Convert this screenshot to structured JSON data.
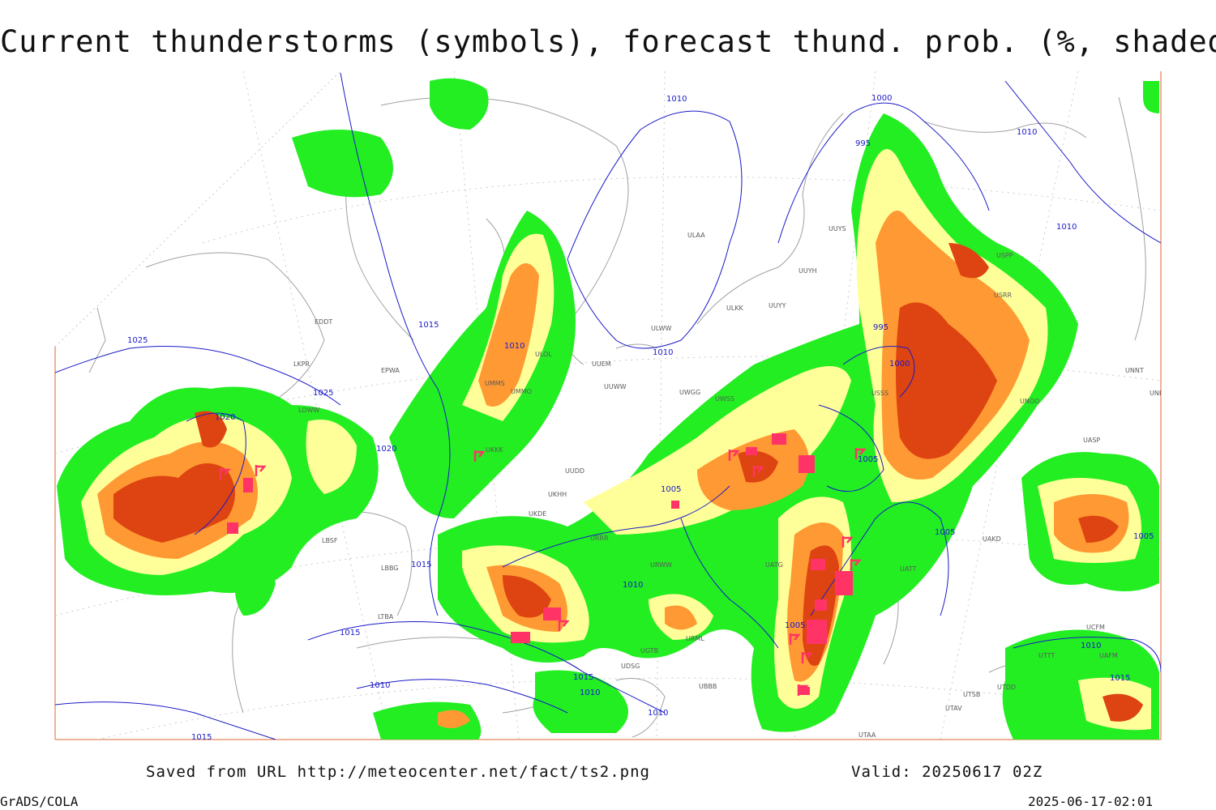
{
  "title": "Current thunderstorms (symbols), forecast thund. prob. (%, shaded)",
  "footer": {
    "source": "Saved from URL http://meteocenter.net/fact/ts2.png",
    "valid": "Valid: 20250617 02Z",
    "software": "GrADS/COLA",
    "timestamp": "2025-06-17-02:01"
  },
  "colors": {
    "prob_low": "#22ee22",
    "prob_mid": "#ffff99",
    "prob_high": "#ff9933",
    "prob_very_high": "#dd4411",
    "storm_symbol": "#ff3366",
    "isobars": "#1a1ac8",
    "coastlines": "#a0a0a0",
    "map_border": "#dd6633"
  },
  "isobar_labels": [
    "1025",
    "1020",
    "1015",
    "1010",
    "1005",
    "1000",
    "995"
  ],
  "station_labels": [
    "ULAA",
    "UUYS",
    "UUYH",
    "ULKK",
    "UUYY",
    "ULWW",
    "ULOL",
    "UUEM",
    "UUWW",
    "UWGG",
    "UWSS",
    "USSS",
    "UNOO",
    "UUDD",
    "UKKK",
    "UKHH",
    "UKDE",
    "URRR",
    "URWW",
    "UATG",
    "UATT",
    "UTDD",
    "UTAA",
    "UTAV",
    "UTSB",
    "UTTT",
    "UNNT",
    "UNBB",
    "UASP",
    "UAKD",
    "LBSF",
    "LBBG",
    "LTBA",
    "EPWA",
    "EDDT",
    "LOWW",
    "LKPR",
    "UMMS",
    "UMMO",
    "USPP",
    "USRR",
    "UCFM",
    "UAFM",
    "URML",
    "UBBB",
    "UDSG",
    "UGTB"
  ]
}
